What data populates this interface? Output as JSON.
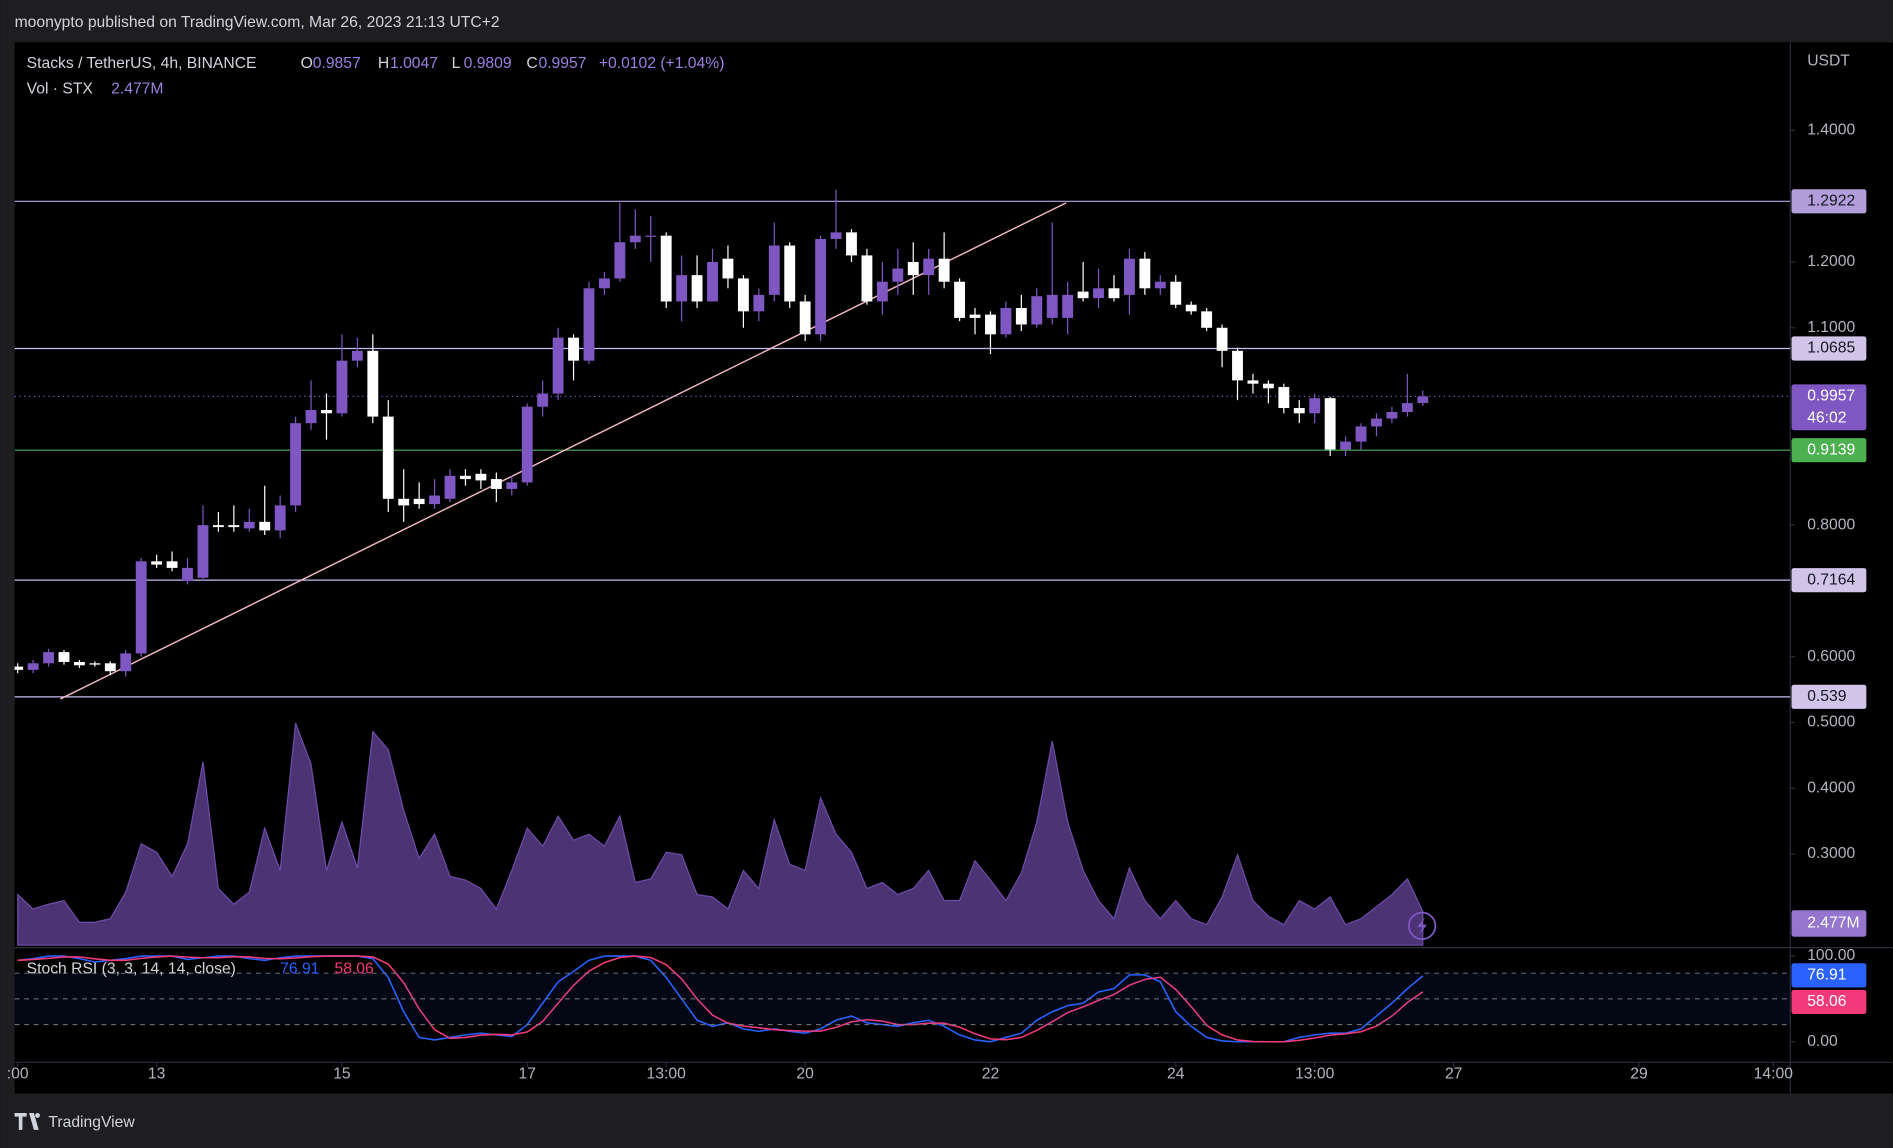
{
  "chart_data": {
    "type": "candlestick",
    "publisher": "moonypto published on TradingView.com, Mar 26, 2023 21:13 UTC+2",
    "title": "Stacks / TetherUS, 4h, BINANCE",
    "ohlc_letters": [
      "O",
      "H",
      "L",
      "C"
    ],
    "change": "+0.0102 (+1.04%)",
    "currency": "USDT",
    "countdown": "46:02",
    "up_color": "#7e57c2",
    "down_color": "#ffffff",
    "open": [
      0.585,
      0.58,
      0.59,
      0.607,
      0.592,
      0.59,
      0.59,
      0.578,
      0.605,
      0.745,
      0.745,
      0.715,
      0.72,
      0.8,
      0.8,
      0.795,
      0.805,
      0.792,
      0.83,
      0.955,
      0.975,
      0.97,
      1.05,
      1.065,
      0.965,
      0.84,
      0.84,
      0.832,
      0.84,
      0.875,
      0.878,
      0.87,
      0.855,
      0.865,
      0.98,
      1.0,
      1.085,
      1.05,
      1.16,
      1.175,
      1.23,
      1.24,
      1.24,
      1.14,
      1.18,
      1.14,
      1.205,
      1.175,
      1.125,
      1.15,
      1.225,
      1.14,
      1.09,
      1.235,
      1.245,
      1.21,
      1.14,
      1.17,
      1.2,
      1.18,
      1.205,
      1.17,
      1.12,
      1.12,
      1.09,
      1.13,
      1.105,
      1.115,
      1.115,
      1.155,
      1.145,
      1.16,
      1.15,
      1.205,
      1.16,
      1.17,
      1.135,
      1.125,
      1.1,
      1.065,
      1.02,
      1.015,
      1.01,
      0.978,
      0.97,
      0.993,
      0.915,
      0.927,
      0.95,
      0.962,
      0.972,
      0.9857
    ],
    "high": [
      0.59,
      0.595,
      0.612,
      0.61,
      0.595,
      0.593,
      0.593,
      0.61,
      0.75,
      0.755,
      0.76,
      0.75,
      0.83,
      0.82,
      0.83,
      0.825,
      0.86,
      0.845,
      0.965,
      1.02,
      1.0,
      1.09,
      1.085,
      1.09,
      0.99,
      0.885,
      0.865,
      0.87,
      0.885,
      0.885,
      0.885,
      0.88,
      0.875,
      0.985,
      1.02,
      1.1,
      1.09,
      1.17,
      1.185,
      1.29,
      1.28,
      1.27,
      1.245,
      1.21,
      1.21,
      1.22,
      1.225,
      1.18,
      1.16,
      1.26,
      1.23,
      1.15,
      1.24,
      1.31,
      1.25,
      1.22,
      1.2,
      1.22,
      1.23,
      1.22,
      1.245,
      1.175,
      1.13,
      1.125,
      1.14,
      1.15,
      1.16,
      1.26,
      1.17,
      1.2,
      1.19,
      1.18,
      1.22,
      1.215,
      1.18,
      1.18,
      1.14,
      1.13,
      1.105,
      1.07,
      1.03,
      1.02,
      1.015,
      0.99,
      1.0,
      0.995,
      0.935,
      0.955,
      0.97,
      0.98,
      1.03,
      1.0047
    ],
    "low": [
      0.575,
      0.575,
      0.585,
      0.588,
      0.583,
      0.585,
      0.572,
      0.57,
      0.6,
      0.735,
      0.73,
      0.71,
      0.715,
      0.79,
      0.79,
      0.79,
      0.785,
      0.78,
      0.82,
      0.945,
      0.93,
      0.965,
      1.04,
      0.955,
      0.82,
      0.805,
      0.825,
      0.825,
      0.835,
      0.86,
      0.855,
      0.835,
      0.845,
      0.86,
      0.965,
      0.99,
      1.02,
      1.045,
      1.15,
      1.17,
      1.22,
      1.2,
      1.13,
      1.11,
      1.13,
      1.14,
      1.16,
      1.1,
      1.11,
      1.14,
      1.13,
      1.08,
      1.08,
      1.22,
      1.2,
      1.135,
      1.12,
      1.15,
      1.15,
      1.15,
      1.16,
      1.11,
      1.09,
      1.06,
      1.085,
      1.095,
      1.1,
      1.105,
      1.09,
      1.14,
      1.13,
      1.14,
      1.12,
      1.15,
      1.15,
      1.13,
      1.12,
      1.095,
      1.04,
      0.99,
      1.0,
      0.985,
      0.97,
      0.955,
      0.955,
      0.905,
      0.905,
      0.915,
      0.935,
      0.955,
      0.965,
      0.9809
    ],
    "close": [
      0.58,
      0.59,
      0.607,
      0.592,
      0.587,
      0.588,
      0.578,
      0.605,
      0.745,
      0.74,
      0.735,
      0.735,
      0.8,
      0.797,
      0.797,
      0.805,
      0.792,
      0.83,
      0.955,
      0.975,
      0.97,
      1.05,
      1.065,
      0.965,
      0.84,
      0.83,
      0.832,
      0.845,
      0.875,
      0.87,
      0.868,
      0.855,
      0.865,
      0.98,
      1.0,
      1.085,
      1.05,
      1.16,
      1.175,
      1.23,
      1.24,
      1.24,
      1.14,
      1.18,
      1.14,
      1.2,
      1.175,
      1.125,
      1.15,
      1.225,
      1.14,
      1.09,
      1.235,
      1.245,
      1.21,
      1.14,
      1.17,
      1.19,
      1.18,
      1.205,
      1.17,
      1.115,
      1.115,
      1.09,
      1.13,
      1.105,
      1.148,
      1.15,
      1.15,
      1.145,
      1.16,
      1.145,
      1.205,
      1.16,
      1.17,
      1.135,
      1.125,
      1.1,
      1.065,
      1.02,
      1.015,
      1.008,
      0.978,
      0.97,
      0.993,
      0.915,
      0.927,
      0.95,
      0.962,
      0.972,
      0.9855,
      0.9957
    ],
    "xlim": [
      -0.2,
      114.8
    ],
    "xticks": [
      {
        "value": 0,
        "label": ":00"
      },
      {
        "value": 9,
        "label": "13"
      },
      {
        "value": 21,
        "label": "15"
      },
      {
        "value": 33,
        "label": "17"
      },
      {
        "value": 42,
        "label": "13:00"
      },
      {
        "value": 51,
        "label": "20"
      },
      {
        "value": 63,
        "label": "22"
      },
      {
        "value": 75,
        "label": "24"
      },
      {
        "value": 84,
        "label": "13:00"
      },
      {
        "value": 93,
        "label": "27"
      },
      {
        "value": 105,
        "label": "29"
      },
      {
        "value": 113.7,
        "label": "14:00"
      }
    ],
    "ylim": [
      0.1615,
      1.534
    ],
    "yticks": [
      {
        "value": 1.4,
        "label": "1.4000"
      },
      {
        "value": 1.2,
        "label": "1.2000"
      },
      {
        "value": 1.1,
        "label": "1.1000"
      },
      {
        "value": 0.8,
        "label": "0.8000"
      },
      {
        "value": 0.6,
        "label": "0.6000"
      },
      {
        "value": 0.5,
        "label": "0.5000"
      },
      {
        "value": 0.4,
        "label": "0.4000"
      },
      {
        "value": 0.3,
        "label": "0.3000"
      }
    ],
    "levels": [
      {
        "value": 1.2922,
        "color": "#b7a9ec",
        "box": "#b39ddb"
      },
      {
        "value": 1.0685,
        "color": "#c8bdf0",
        "box": "#d1c4e9"
      },
      {
        "value": 0.9139,
        "color": "#4caf50",
        "box": "#4caf50"
      },
      {
        "value": 0.7164,
        "color": "#c8bdf0",
        "box": "#d1c4e9"
      },
      {
        "value": 0.539,
        "color": "#c8bdf0",
        "box": "#d1c4e9"
      }
    ],
    "trendline": {
      "x": [
        2.77,
        67.9
      ],
      "y": [
        0.5358,
        1.2899
      ],
      "color": "#f2b8c0"
    },
    "volume": {
      "name": "Vol · STX",
      "color": "#7e57c2",
      "last_label": "2.477M",
      "values": [
        3.72,
        2.65,
        3.01,
        3.27,
        1.68,
        1.68,
        1.95,
        3.89,
        7.43,
        6.81,
        5.04,
        7.43,
        13.45,
        4.16,
        3.01,
        3.89,
        8.58,
        5.49,
        16.28,
        13.27,
        5.49,
        9.03,
        5.66,
        15.66,
        14.34,
        9.91,
        6.37,
        8.14,
        5.04,
        4.78,
        4.16,
        2.65,
        5.49,
        8.58,
        7.26,
        9.47,
        7.7,
        8.14,
        7.26,
        9.47,
        4.6,
        4.87,
        6.81,
        6.64,
        3.72,
        3.54,
        2.65,
        5.49,
        4.16,
        9.2,
        5.93,
        5.49,
        10.8,
        8.14,
        6.81,
        4.16,
        4.6,
        3.72,
        4.16,
        5.49,
        3.27,
        3.27,
        6.19,
        4.78,
        3.27,
        5.31,
        9.03,
        14.96,
        9.03,
        5.49,
        3.27,
        1.95,
        5.66,
        3.27,
        1.95,
        3.27,
        1.95,
        1.5,
        3.54,
        6.64,
        3.27,
        2.12,
        1.5,
        3.27,
        2.65,
        3.54,
        1.5,
        1.95,
        2.83,
        3.72,
        4.87,
        2.477
      ]
    },
    "stoch": {
      "name": "Stoch RSI (3, 3, 14, 14, close)",
      "ylim": [
        -24,
        105.6
      ],
      "yticks": [
        {
          "value": 100,
          "label": "100.00"
        },
        {
          "value": 0,
          "label": "0.00"
        }
      ],
      "levels": [
        80,
        50,
        20
      ],
      "series": [
        {
          "color": "#2962ff",
          "values": [
            95,
            97,
            100,
            100,
            97,
            93,
            95,
            97,
            100,
            100,
            100,
            96,
            98,
            100,
            100,
            97,
            95,
            98,
            100,
            100,
            100,
            100,
            100,
            97,
            75,
            35,
            5,
            2,
            5,
            8,
            10,
            8,
            6,
            20,
            45,
            70,
            82,
            95,
            100,
            100,
            100,
            95,
            75,
            50,
            25,
            18,
            22,
            15,
            12,
            15,
            12,
            10,
            15,
            25,
            30,
            22,
            20,
            18,
            22,
            25,
            18,
            8,
            2,
            0,
            5,
            10,
            25,
            35,
            42,
            45,
            58,
            62,
            78,
            78,
            70,
            35,
            18,
            5,
            1,
            0,
            0,
            0,
            0,
            5,
            8,
            10,
            10,
            15,
            30,
            45,
            62,
            76.91
          ]
        },
        {
          "color": "#f23a7a",
          "values": [
            95,
            96,
            97.3,
            99,
            99,
            96.7,
            95,
            95,
            97.3,
            99,
            100,
            98.7,
            98,
            98,
            99.3,
            99,
            97.3,
            96.7,
            97.7,
            99.3,
            100,
            100,
            100,
            99,
            90.7,
            69,
            38.3,
            14,
            4,
            5,
            7.7,
            8.7,
            8,
            11.3,
            23.7,
            45,
            65.7,
            82.3,
            92.3,
            98.3,
            100,
            98.3,
            90,
            73.3,
            50,
            31,
            21.7,
            18.3,
            16.3,
            14,
            13,
            12.3,
            12.3,
            16.7,
            23.3,
            25.7,
            24,
            20,
            20,
            21.7,
            21.7,
            17,
            9.3,
            3.3,
            2.3,
            5,
            13.3,
            23.3,
            34,
            40.7,
            48.3,
            55,
            66,
            72.7,
            75.3,
            61,
            41,
            19.3,
            8,
            2,
            0.3,
            0,
            0,
            1.7,
            4.3,
            7.7,
            9.3,
            11.7,
            18.3,
            30,
            45.7,
            58.06
          ]
        }
      ]
    },
    "footer": "TradingView"
  }
}
